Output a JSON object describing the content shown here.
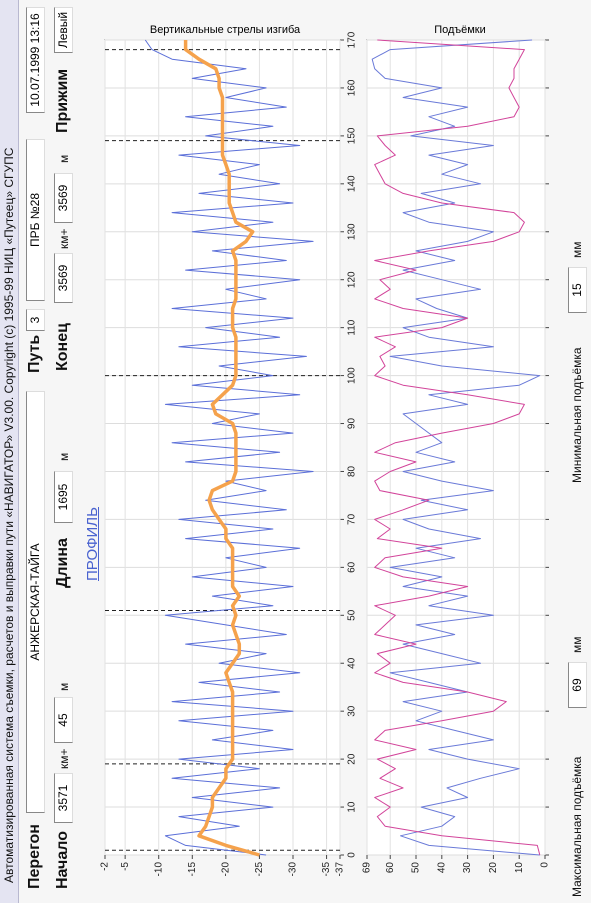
{
  "window": {
    "title": "Автоматизированная система съемки, расчетов и выправки пути «НАВИГАТОР» V3.00.   Copyright (c) 1995-99 НИЦ «Путеец» СГУПС"
  },
  "form": {
    "peregon_label": "Перегон",
    "peregon": "АНЖЕРСКАЯ-ТАЙГА",
    "put_label": "Путь",
    "put": 3,
    "prb": "ПРБ №28",
    "datetime": "10.07.1999 13:16",
    "nachalo_label": "Начало",
    "nachalo_km": 3571,
    "km_plus": "км+",
    "nachalo_m": 45,
    "m": "м",
    "dlina_label": "Длина",
    "dlina": 1695,
    "konec_label": "Конец",
    "konec_km": 3569,
    "konec_m": 3569,
    "prizhim_label": "Прижим",
    "prizhim": "Левый",
    "profile_link": "ПРОФИЛЬ"
  },
  "bottom": {
    "max_label": "Максимальная подъёмка",
    "max_value": 69,
    "min_label": "Минимальная подъёмка",
    "min_value": 15,
    "unit": "мм"
  },
  "chart_data": [
    {
      "type": "line",
      "title": "Вертикальные стрелы изгиба",
      "x": [
        0,
        2,
        4,
        6,
        8,
        10,
        12,
        14,
        16,
        18,
        20,
        22,
        24,
        26,
        28,
        30,
        32,
        34,
        36,
        38,
        40,
        42,
        44,
        46,
        48,
        50,
        52,
        54,
        56,
        58,
        60,
        62,
        64,
        66,
        68,
        70,
        72,
        74,
        76,
        78,
        80,
        82,
        84,
        86,
        88,
        90,
        92,
        94,
        96,
        98,
        100,
        102,
        104,
        106,
        108,
        110,
        112,
        114,
        116,
        118,
        120,
        122,
        124,
        126,
        128,
        130,
        132,
        134,
        136,
        138,
        140,
        142,
        144,
        146,
        148,
        150,
        152,
        154,
        156,
        158,
        160,
        162,
        164,
        166,
        168,
        170
      ],
      "xlim": [
        0,
        170
      ],
      "xticks": [
        0,
        10,
        20,
        30,
        40,
        50,
        60,
        70,
        80,
        90,
        100,
        110,
        120,
        130,
        140,
        150,
        160,
        170
      ],
      "ylim": [
        -37,
        -2
      ],
      "yticks": [
        -2,
        -5,
        -10,
        -15,
        -20,
        -25,
        -30,
        -35,
        -37
      ],
      "grid": true,
      "markers": [
        1,
        19,
        51,
        100,
        149,
        168
      ],
      "series": [
        {
          "color": "#5b6fd8",
          "values": [
            -26,
            -14,
            -11,
            -22,
            -13,
            -27,
            -15,
            -28,
            -12,
            -25,
            -13,
            -30,
            -18,
            -27,
            -13,
            -30,
            -12,
            -28,
            -16,
            -31,
            -19,
            -26,
            -14,
            -29,
            -20,
            -11,
            -27,
            -18,
            -30,
            -15,
            -26,
            -20,
            -31,
            -14,
            -27,
            -13,
            -29,
            -17,
            -26,
            -20,
            -33,
            -14,
            -28,
            -12,
            -30,
            -18,
            -25,
            -11,
            -31,
            -15,
            -27,
            -19,
            -32,
            -13,
            -28,
            -17,
            -30,
            -12,
            -26,
            -20,
            -31,
            -14,
            -29,
            -18,
            -33,
            -15,
            -27,
            -12,
            -30,
            -16,
            -28,
            -19,
            -25,
            -13,
            -31,
            -17,
            -27,
            -14,
            -29,
            -20,
            -26,
            -15,
            -23,
            -12,
            -9,
            -8
          ]
        },
        {
          "color": "#f5a24c",
          "values": [
            -25,
            -20,
            -16,
            -17,
            -17.5,
            -18,
            -18,
            -19,
            -20,
            -20,
            -21,
            -21,
            -21,
            -21,
            -21,
            -21,
            -21,
            -21,
            -20.5,
            -20,
            -21,
            -22,
            -22,
            -21.5,
            -21,
            -21.5,
            -21,
            -22,
            -21,
            -21,
            -21,
            -21,
            -21,
            -20,
            -20,
            -19,
            -18,
            -17.5,
            -18,
            -21,
            -21.5,
            -21.5,
            -21.5,
            -21.5,
            -21.5,
            -21,
            -18.5,
            -18,
            -19.5,
            -21,
            -21.5,
            -21.5,
            -21.5,
            -21.5,
            -21.5,
            -21,
            -21,
            -21,
            -21.5,
            -21.5,
            -21.5,
            -21.5,
            -21.5,
            -21,
            -23,
            -24,
            -21.5,
            -21,
            -20.5,
            -20.5,
            -20.5,
            -20.5,
            -20,
            -19.5,
            -19.5,
            -19.5,
            -19.5,
            -19.5,
            -19.5,
            -19.5,
            -19,
            -19,
            -18.5,
            -16,
            -14,
            -14
          ]
        }
      ]
    },
    {
      "type": "line",
      "title": "Подъёмки",
      "x": [
        0,
        2,
        4,
        6,
        8,
        10,
        12,
        14,
        16,
        18,
        20,
        22,
        24,
        26,
        28,
        30,
        32,
        34,
        36,
        38,
        40,
        42,
        44,
        46,
        48,
        50,
        52,
        54,
        56,
        58,
        60,
        62,
        64,
        66,
        68,
        70,
        72,
        74,
        76,
        78,
        80,
        82,
        84,
        86,
        88,
        90,
        92,
        94,
        96,
        98,
        100,
        102,
        104,
        106,
        108,
        110,
        112,
        114,
        116,
        118,
        120,
        122,
        124,
        126,
        128,
        130,
        132,
        134,
        136,
        138,
        140,
        142,
        144,
        146,
        148,
        150,
        152,
        154,
        156,
        158,
        160,
        162,
        164,
        166,
        168,
        170
      ],
      "xlim": [
        0,
        170
      ],
      "ylim": [
        0,
        69
      ],
      "yticks": [
        0,
        10,
        20,
        30,
        40,
        50,
        60,
        69
      ],
      "grid": true,
      "series": [
        {
          "color": "#6a7ad8",
          "values": [
            2,
            45,
            56,
            40,
            35,
            48,
            30,
            38,
            25,
            10,
            30,
            45,
            20,
            35,
            50,
            40,
            55,
            30,
            45,
            60,
            25,
            40,
            55,
            35,
            50,
            20,
            45,
            30,
            55,
            40,
            60,
            35,
            50,
            25,
            45,
            55,
            30,
            48,
            20,
            40,
            55,
            35,
            50,
            40,
            45,
            50,
            55,
            30,
            45,
            10,
            2,
            40,
            60,
            20,
            45,
            55,
            30,
            42,
            50,
            25,
            40,
            55,
            35,
            50,
            30,
            20,
            45,
            55,
            35,
            48,
            25,
            40,
            30,
            45,
            20,
            52,
            35,
            45,
            30,
            55,
            40,
            62,
            66,
            67,
            60,
            5
          ]
        },
        {
          "color": "#d2449a",
          "values": [
            2,
            3,
            40,
            62,
            65,
            60,
            66,
            55,
            64,
            58,
            65,
            50,
            66,
            62,
            40,
            20,
            15,
            30,
            55,
            66,
            60,
            65,
            50,
            66,
            62,
            58,
            66,
            45,
            30,
            55,
            66,
            62,
            40,
            65,
            60,
            66,
            55,
            45,
            64,
            66,
            60,
            50,
            66,
            58,
            40,
            20,
            10,
            8,
            30,
            55,
            66,
            62,
            64,
            58,
            66,
            40,
            30,
            55,
            66,
            60,
            64,
            50,
            66,
            45,
            20,
            10,
            8,
            12,
            40,
            55,
            62,
            64,
            66,
            58,
            62,
            65,
            30,
            12,
            10,
            12,
            14,
            12,
            12,
            10,
            8,
            65
          ]
        }
      ]
    }
  ]
}
